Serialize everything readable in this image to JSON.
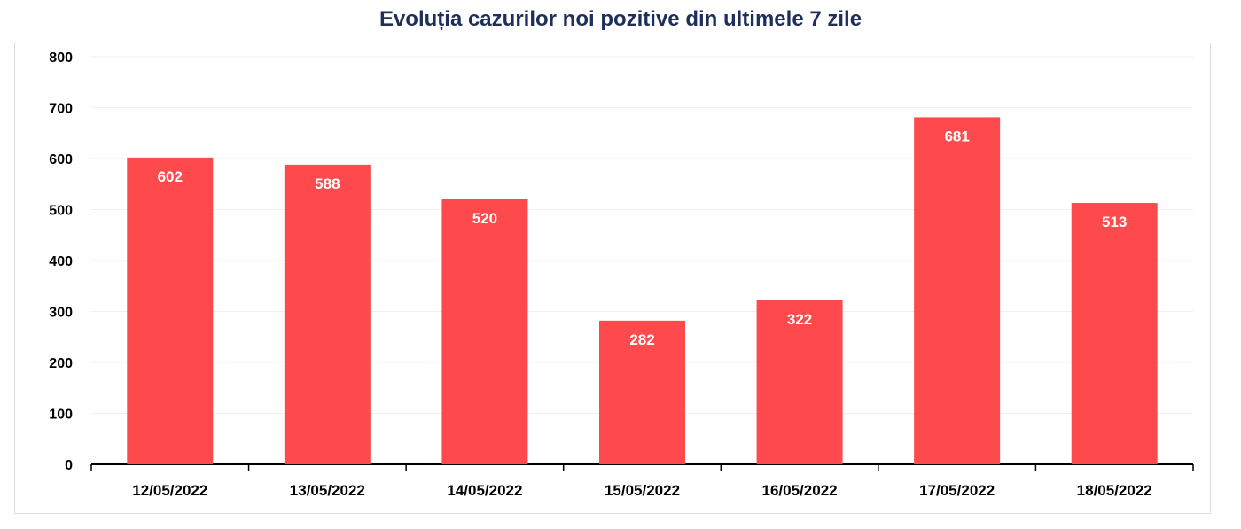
{
  "chart_data": {
    "type": "bar",
    "title": "Evoluția cazurilor noi pozitive din ultimele 7 zile",
    "categories": [
      "12/05/2022",
      "13/05/2022",
      "14/05/2022",
      "15/05/2022",
      "16/05/2022",
      "17/05/2022",
      "18/05/2022"
    ],
    "values": [
      602,
      588,
      520,
      282,
      322,
      681,
      513
    ],
    "ylim": [
      0,
      800
    ],
    "yticks": [
      0,
      100,
      200,
      300,
      400,
      500,
      600,
      700,
      800
    ],
    "xlabel": "",
    "ylabel": "",
    "grid": true,
    "legend": "none",
    "bar_color": "#ff4a4d",
    "data_labels": true
  }
}
